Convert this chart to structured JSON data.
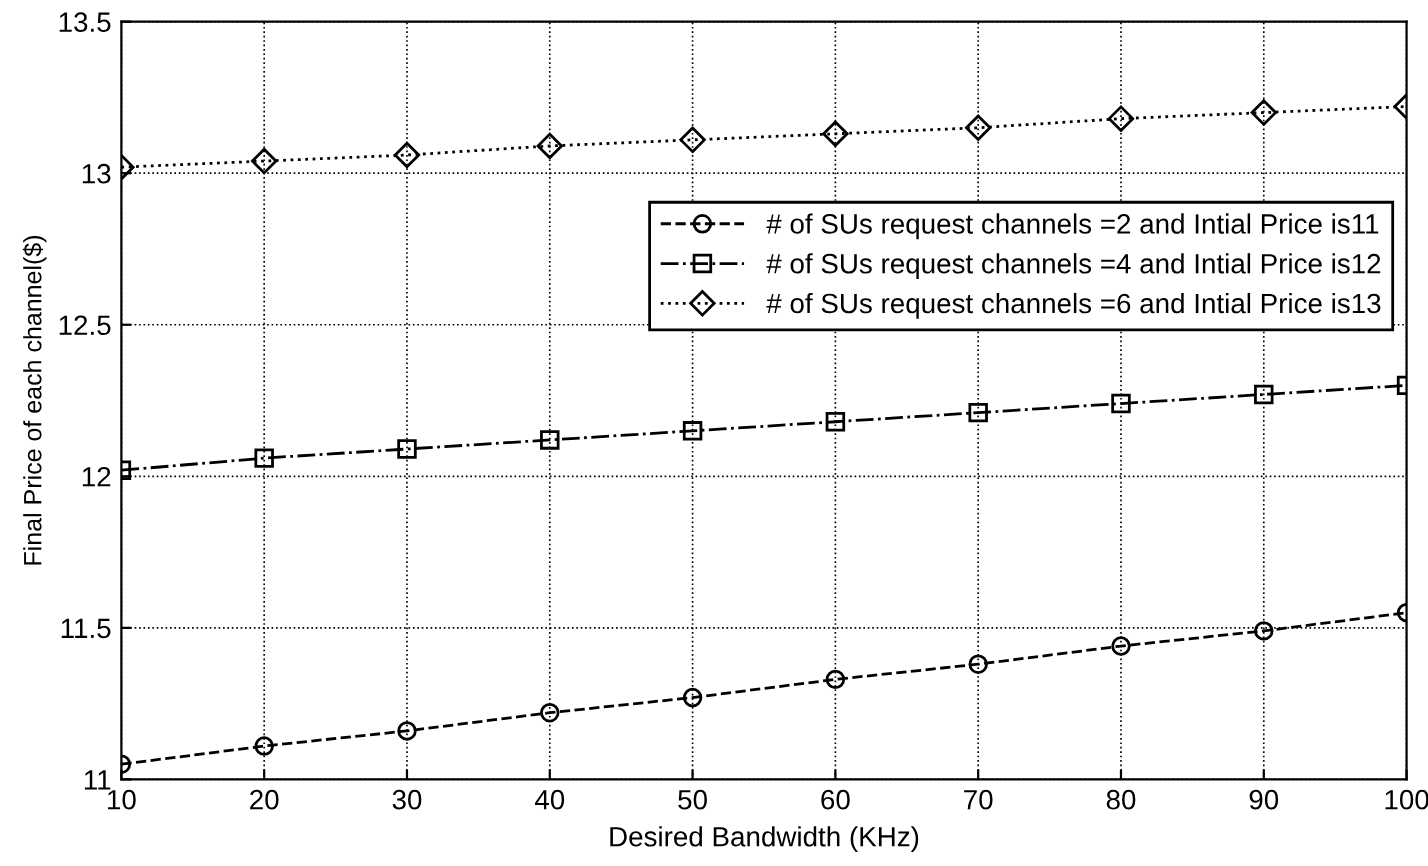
{
  "chart_data": {
    "type": "line",
    "xlabel": "Desired Bandwidth (KHz)",
    "ylabel": "Final Price of each channel($)",
    "x": [
      10,
      20,
      30,
      40,
      50,
      60,
      70,
      80,
      90,
      100
    ],
    "series": [
      {
        "name": "# of SUs request channels =2 and Intial Price is11",
        "color": "#000000",
        "marker": "circle",
        "line_style": "dashed",
        "values": [
          11.05,
          11.11,
          11.16,
          11.22,
          11.27,
          11.33,
          11.38,
          11.44,
          11.49,
          11.55
        ]
      },
      {
        "name": "# of SUs request channels =4 and Intial Price is12",
        "color": "#000000",
        "marker": "square",
        "line_style": "dashdot",
        "values": [
          12.02,
          12.06,
          12.09,
          12.12,
          12.15,
          12.18,
          12.21,
          12.24,
          12.27,
          12.3
        ]
      },
      {
        "name": "# of SUs request channels =6 and Intial Price is13",
        "color": "#000000",
        "marker": "diamond",
        "line_style": "dotted",
        "values": [
          13.02,
          13.04,
          13.06,
          13.09,
          13.11,
          13.13,
          13.15,
          13.18,
          13.2,
          13.22
        ]
      }
    ],
    "xlim": [
      10,
      100
    ],
    "xticks": [
      10,
      20,
      30,
      40,
      50,
      60,
      70,
      80,
      90,
      100
    ],
    "ylim": [
      11,
      13.5
    ],
    "yticks": [
      11,
      11.5,
      12,
      12.5,
      13,
      13.5
    ],
    "grid": true,
    "legend": "top right"
  }
}
